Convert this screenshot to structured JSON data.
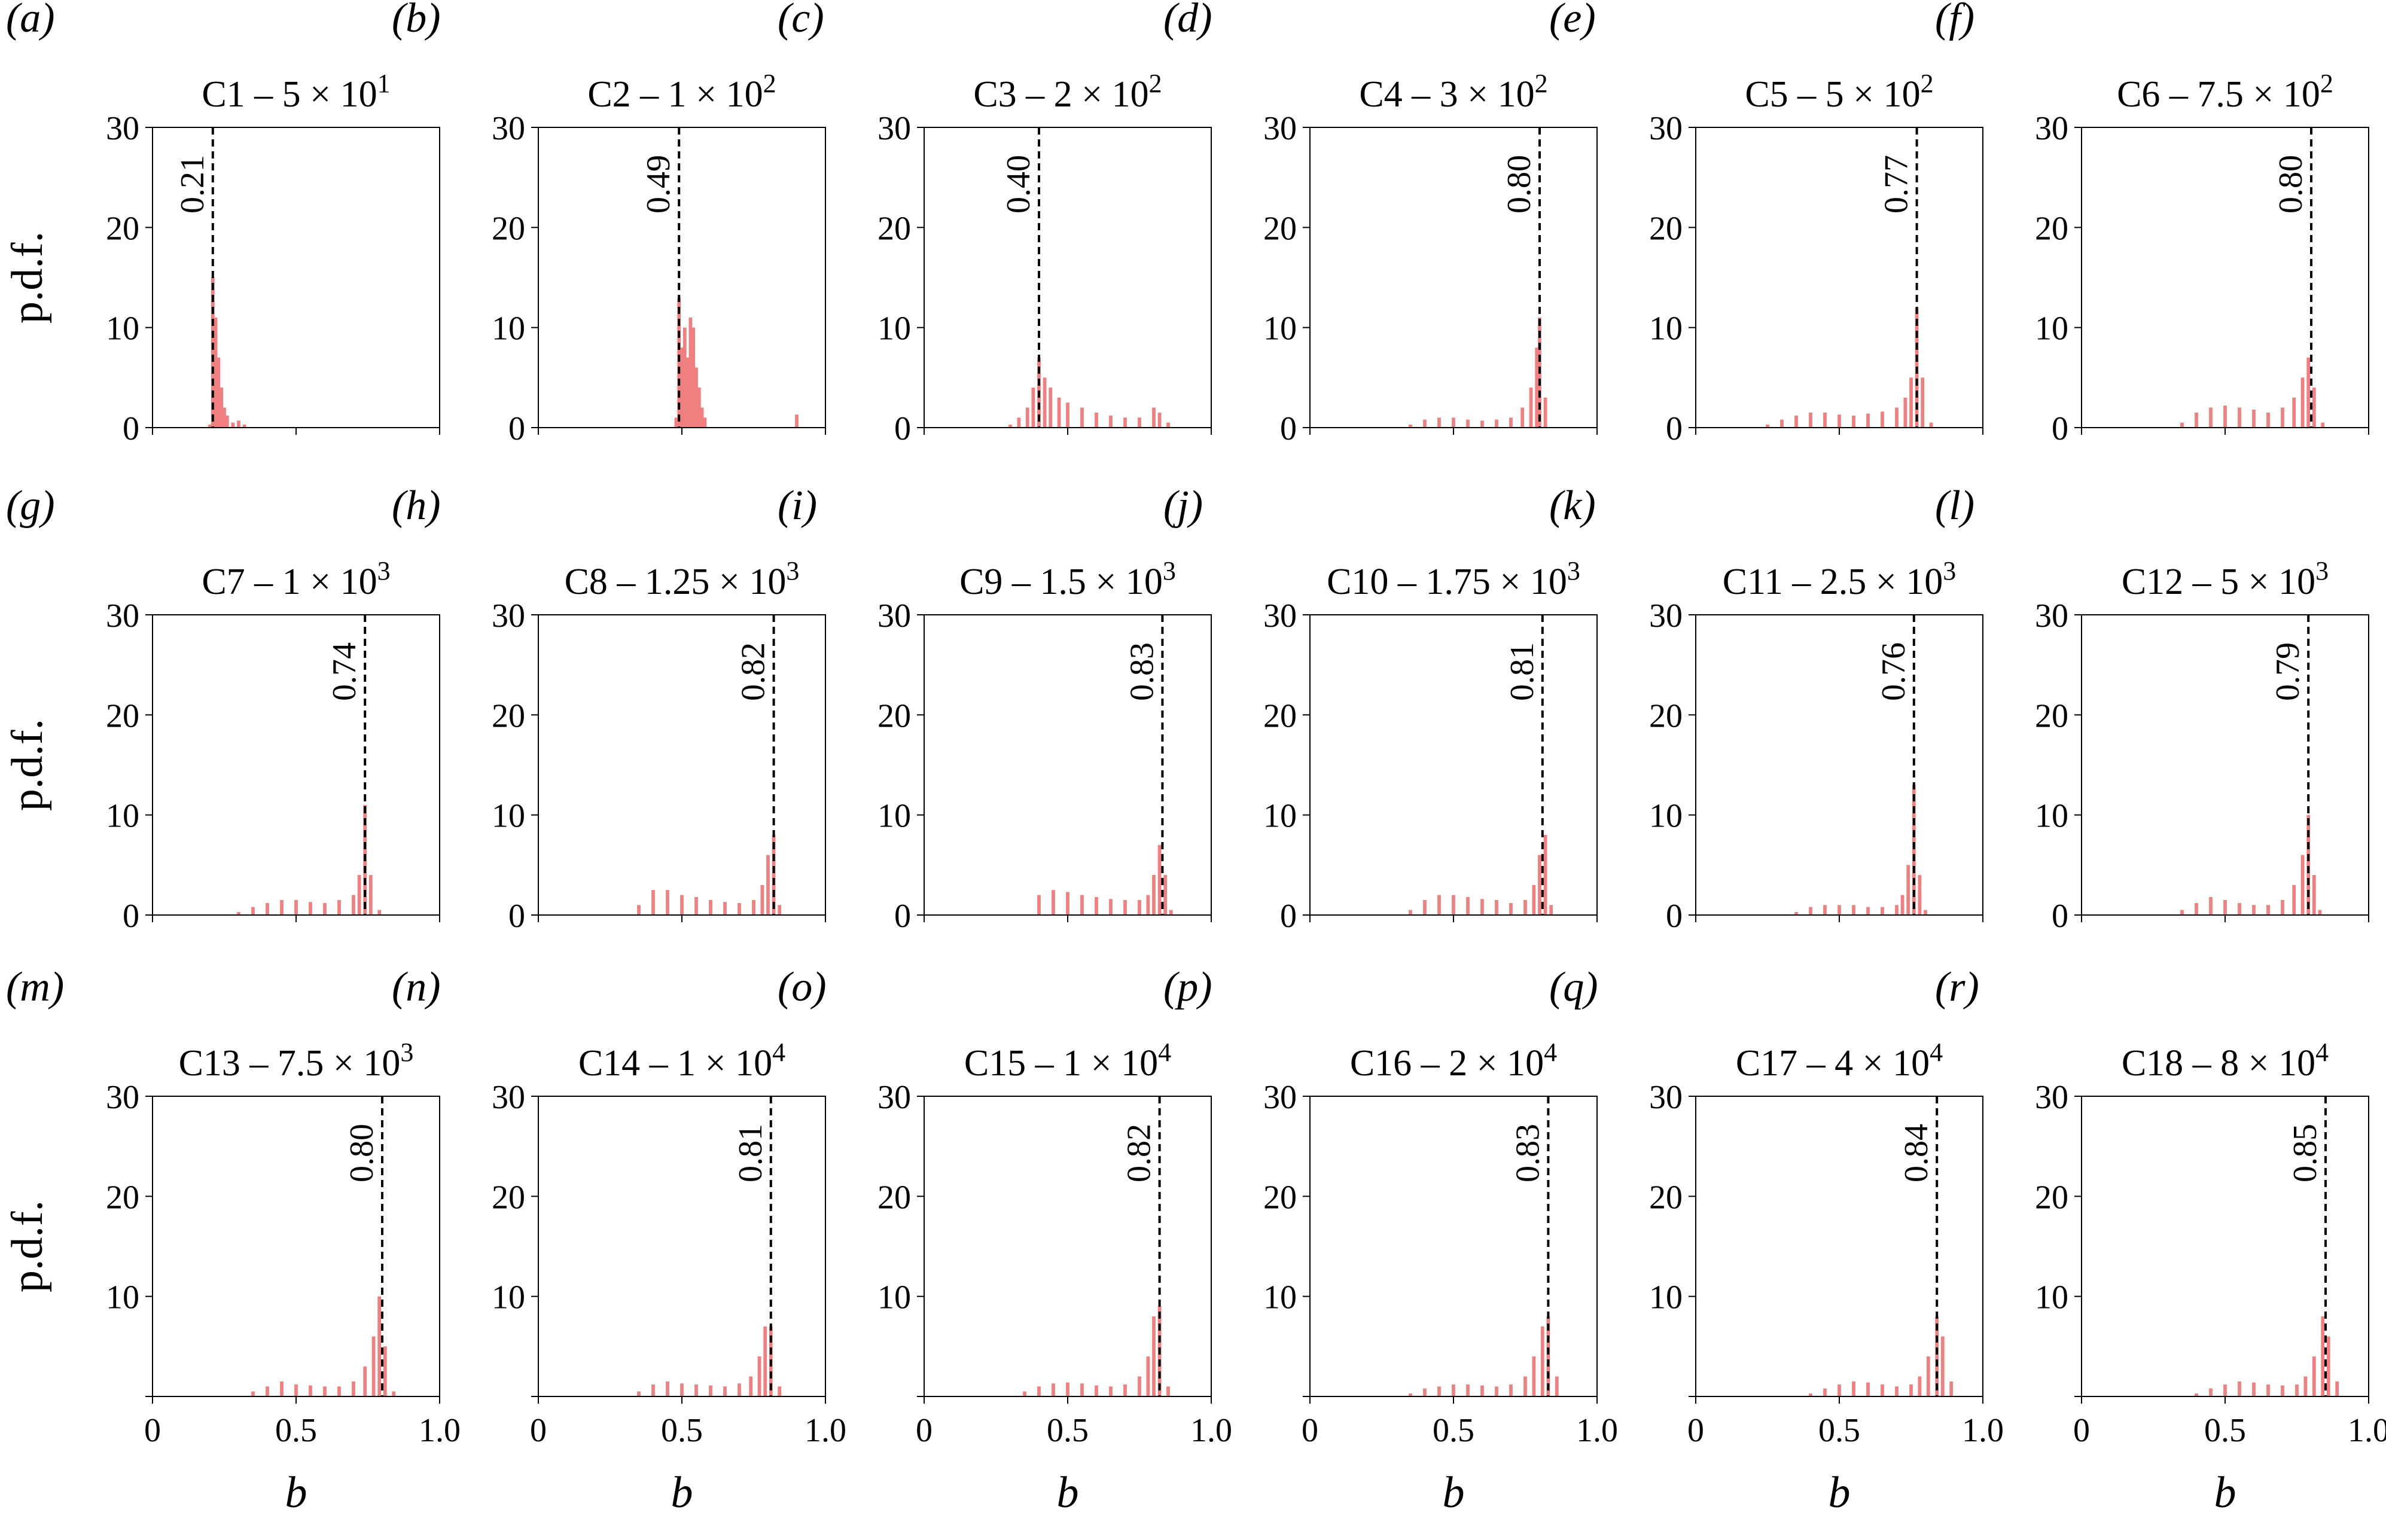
{
  "figure": {
    "ylabel": "p.d.f.",
    "xlabel": "b",
    "yticks": [
      "0",
      "10",
      "20",
      "30"
    ],
    "xticks": [
      "0",
      "0.5",
      "1.0"
    ],
    "bar_color": "#f08080",
    "line_color": "#000000"
  },
  "chart_data": [
    {
      "type": "bar",
      "panel": "(a)",
      "title": "C1 – 5 × 10¹",
      "xlim": [
        0,
        1
      ],
      "ylim": [
        0,
        30
      ],
      "marker": 0.21,
      "marker_label": "0.21",
      "bins_x": [
        0.2,
        0.21,
        0.22,
        0.23,
        0.24,
        0.25,
        0.26,
        0.28,
        0.3,
        0.32
      ],
      "values": [
        0.3,
        15,
        11,
        7,
        4,
        2,
        1.2,
        0.5,
        0.7,
        0.3
      ]
    },
    {
      "type": "bar",
      "panel": "(b)",
      "title": "C2 – 1 × 10²",
      "xlim": [
        0,
        1
      ],
      "ylim": [
        0,
        30
      ],
      "marker": 0.49,
      "marker_label": "0.49",
      "bins_x": [
        0.48,
        0.49,
        0.5,
        0.51,
        0.52,
        0.53,
        0.54,
        0.55,
        0.56,
        0.57,
        0.58,
        0.9
      ],
      "values": [
        1,
        13,
        8,
        10,
        7,
        11,
        10,
        6,
        4,
        2,
        1,
        1.3
      ]
    },
    {
      "type": "bar",
      "panel": "(c)",
      "title": "C3 – 2 × 10²",
      "xlim": [
        0,
        1
      ],
      "ylim": [
        0,
        30
      ],
      "marker": 0.4,
      "marker_label": "0.40",
      "bins_x": [
        0.3,
        0.33,
        0.36,
        0.38,
        0.4,
        0.42,
        0.44,
        0.47,
        0.5,
        0.55,
        0.6,
        0.65,
        0.7,
        0.75,
        0.8,
        0.82,
        0.85
      ],
      "values": [
        0.3,
        1,
        2,
        4,
        7,
        5,
        4,
        3,
        2.5,
        2,
        1.5,
        1.2,
        1,
        1,
        2,
        1.5,
        0.5
      ]
    },
    {
      "type": "bar",
      "panel": "(d)",
      "title": "C4 – 3 × 10²",
      "xlim": [
        0,
        1
      ],
      "ylim": [
        0,
        30
      ],
      "marker": 0.8,
      "marker_label": "0.80",
      "bins_x": [
        0.35,
        0.4,
        0.45,
        0.5,
        0.55,
        0.6,
        0.65,
        0.7,
        0.74,
        0.77,
        0.79,
        0.8,
        0.82
      ],
      "values": [
        0.3,
        0.8,
        1,
        1,
        0.8,
        0.7,
        0.8,
        1,
        2,
        4,
        8,
        11,
        3
      ]
    },
    {
      "type": "bar",
      "panel": "(e)",
      "title": "C5 – 5 × 10²",
      "xlim": [
        0,
        1
      ],
      "ylim": [
        0,
        30
      ],
      "marker": 0.77,
      "marker_label": "0.77",
      "bins_x": [
        0.25,
        0.3,
        0.35,
        0.4,
        0.45,
        0.5,
        0.55,
        0.6,
        0.65,
        0.7,
        0.73,
        0.75,
        0.77,
        0.79,
        0.82
      ],
      "values": [
        0.3,
        0.8,
        1.2,
        1.5,
        1.5,
        1.3,
        1.2,
        1.4,
        1.6,
        2,
        3,
        5,
        12,
        5,
        0.5
      ]
    },
    {
      "type": "bar",
      "panel": "(f)",
      "title": "C6 – 7.5 × 10²",
      "xlim": [
        0,
        1
      ],
      "ylim": [
        0,
        30
      ],
      "marker": 0.8,
      "marker_label": "0.80",
      "bins_x": [
        0.35,
        0.4,
        0.45,
        0.5,
        0.55,
        0.6,
        0.65,
        0.7,
        0.74,
        0.77,
        0.79,
        0.81,
        0.84
      ],
      "values": [
        0.5,
        1.5,
        2,
        2.2,
        2,
        1.8,
        1.5,
        2,
        3,
        5,
        7,
        4,
        0.5
      ]
    },
    {
      "type": "bar",
      "panel": "(g)",
      "title": "C7 – 1 × 10³",
      "xlim": [
        0,
        1
      ],
      "ylim": [
        0,
        30
      ],
      "marker": 0.74,
      "marker_label": "0.74",
      "bins_x": [
        0.3,
        0.35,
        0.4,
        0.45,
        0.5,
        0.55,
        0.6,
        0.65,
        0.7,
        0.72,
        0.74,
        0.76,
        0.79
      ],
      "values": [
        0.3,
        0.8,
        1.2,
        1.5,
        1.5,
        1.3,
        1.2,
        1.5,
        2,
        4,
        11,
        4,
        0.5
      ]
    },
    {
      "type": "bar",
      "panel": "(h)",
      "title": "C8 – 1.25 × 10³",
      "xlim": [
        0,
        1
      ],
      "ylim": [
        0,
        30
      ],
      "marker": 0.82,
      "marker_label": "0.82",
      "bins_x": [
        0.35,
        0.4,
        0.45,
        0.5,
        0.55,
        0.6,
        0.65,
        0.7,
        0.75,
        0.78,
        0.8,
        0.82,
        0.84
      ],
      "values": [
        1,
        2.5,
        2.5,
        2,
        1.8,
        1.5,
        1.3,
        1.2,
        1.5,
        3,
        6,
        8,
        1
      ]
    },
    {
      "type": "bar",
      "panel": "(i)",
      "title": "C9 – 1.5 × 10³",
      "xlim": [
        0,
        1
      ],
      "ylim": [
        0,
        30
      ],
      "marker": 0.83,
      "marker_label": "0.83",
      "bins_x": [
        0.4,
        0.45,
        0.5,
        0.55,
        0.6,
        0.65,
        0.7,
        0.75,
        0.78,
        0.8,
        0.82,
        0.84,
        0.86
      ],
      "values": [
        2,
        2.5,
        2.3,
        2,
        1.8,
        1.6,
        1.5,
        1.5,
        2,
        4,
        7,
        4,
        0.5
      ]
    },
    {
      "type": "bar",
      "panel": "(j)",
      "title": "C10 – 1.75 × 10³",
      "xlim": [
        0,
        1
      ],
      "ylim": [
        0,
        30
      ],
      "marker": 0.81,
      "marker_label": "0.81",
      "bins_x": [
        0.35,
        0.4,
        0.45,
        0.5,
        0.55,
        0.6,
        0.65,
        0.7,
        0.75,
        0.78,
        0.8,
        0.82,
        0.84
      ],
      "values": [
        0.5,
        1.5,
        2,
        2,
        1.8,
        1.6,
        1.5,
        1.2,
        1.5,
        3,
        6,
        8,
        1
      ]
    },
    {
      "type": "bar",
      "panel": "(k)",
      "title": "C11 – 2.5 × 10³",
      "xlim": [
        0,
        1
      ],
      "ylim": [
        0,
        30
      ],
      "marker": 0.76,
      "marker_label": "0.76",
      "bins_x": [
        0.35,
        0.4,
        0.45,
        0.5,
        0.55,
        0.6,
        0.65,
        0.7,
        0.72,
        0.74,
        0.76,
        0.78,
        0.8
      ],
      "values": [
        0.3,
        0.8,
        1,
        1,
        1,
        0.8,
        0.8,
        1,
        2,
        5,
        13,
        4,
        0.5
      ]
    },
    {
      "type": "bar",
      "panel": "(l)",
      "title": "C12 – 5 × 10³",
      "xlim": [
        0,
        1
      ],
      "ylim": [
        0,
        30
      ],
      "marker": 0.79,
      "marker_label": "0.79",
      "bins_x": [
        0.35,
        0.4,
        0.45,
        0.5,
        0.55,
        0.6,
        0.65,
        0.7,
        0.74,
        0.77,
        0.79,
        0.81,
        0.83
      ],
      "values": [
        0.5,
        1.2,
        1.8,
        1.5,
        1.2,
        1,
        1,
        1.5,
        3,
        6,
        10,
        4,
        0.5
      ]
    },
    {
      "type": "bar",
      "panel": "(m)",
      "title": "C13 – 7.5 × 10³",
      "xlim": [
        0,
        1
      ],
      "ylim": [
        0,
        30
      ],
      "marker": 0.8,
      "marker_label": "0.80",
      "bins_x": [
        0.35,
        0.4,
        0.45,
        0.5,
        0.55,
        0.6,
        0.65,
        0.7,
        0.74,
        0.77,
        0.79,
        0.81,
        0.84
      ],
      "values": [
        0.5,
        1,
        1.5,
        1.2,
        1.1,
        1,
        1,
        1.5,
        3,
        6,
        10,
        5,
        0.5
      ]
    },
    {
      "type": "bar",
      "panel": "(n)",
      "title": "C14 – 1 × 10⁴",
      "xlim": [
        0,
        1
      ],
      "ylim": [
        0,
        30
      ],
      "marker": 0.81,
      "marker_label": "0.81",
      "bins_x": [
        0.35,
        0.4,
        0.45,
        0.5,
        0.55,
        0.6,
        0.65,
        0.7,
        0.74,
        0.77,
        0.79,
        0.81,
        0.84
      ],
      "values": [
        0.5,
        1.2,
        1.5,
        1.3,
        1.2,
        1.1,
        1,
        1.3,
        2,
        4,
        7,
        7,
        1
      ]
    },
    {
      "type": "bar",
      "panel": "(o)",
      "title": "C15 – 1 × 10⁴",
      "xlim": [
        0,
        1
      ],
      "ylim": [
        0,
        30
      ],
      "marker": 0.82,
      "marker_label": "0.82",
      "bins_x": [
        0.35,
        0.4,
        0.45,
        0.5,
        0.55,
        0.6,
        0.65,
        0.7,
        0.75,
        0.78,
        0.8,
        0.82,
        0.85
      ],
      "values": [
        0.5,
        1,
        1.3,
        1.4,
        1.3,
        1.1,
        1,
        1.2,
        2,
        4,
        8,
        9,
        1
      ]
    },
    {
      "type": "bar",
      "panel": "(p)",
      "title": "C16 – 2 × 10⁴",
      "xlim": [
        0,
        1
      ],
      "ylim": [
        0,
        30
      ],
      "marker": 0.83,
      "marker_label": "0.83",
      "bins_x": [
        0.35,
        0.4,
        0.45,
        0.5,
        0.55,
        0.6,
        0.65,
        0.7,
        0.75,
        0.78,
        0.81,
        0.83,
        0.86
      ],
      "values": [
        0.3,
        0.8,
        1,
        1.2,
        1.2,
        1.1,
        1,
        1.2,
        2,
        4,
        7,
        8,
        2
      ]
    },
    {
      "type": "bar",
      "panel": "(q)",
      "title": "C17 – 4 × 10⁴",
      "xlim": [
        0,
        1
      ],
      "ylim": [
        0,
        30
      ],
      "marker": 0.84,
      "marker_label": "0.84",
      "bins_x": [
        0.4,
        0.45,
        0.5,
        0.55,
        0.6,
        0.65,
        0.7,
        0.75,
        0.78,
        0.81,
        0.84,
        0.86,
        0.89
      ],
      "values": [
        0.3,
        0.8,
        1.2,
        1.5,
        1.4,
        1.2,
        1,
        1.2,
        2,
        4,
        8,
        6,
        1.5
      ]
    },
    {
      "type": "bar",
      "panel": "(r)",
      "title": "C18 – 8 × 10⁴",
      "xlim": [
        0,
        1
      ],
      "ylim": [
        0,
        30
      ],
      "marker": 0.85,
      "marker_label": "0.85",
      "bins_x": [
        0.4,
        0.45,
        0.5,
        0.55,
        0.6,
        0.65,
        0.7,
        0.75,
        0.78,
        0.81,
        0.84,
        0.86,
        0.89
      ],
      "values": [
        0.3,
        0.8,
        1.2,
        1.5,
        1.4,
        1.2,
        1.1,
        1.2,
        2,
        4,
        8,
        6,
        1.5
      ]
    }
  ]
}
